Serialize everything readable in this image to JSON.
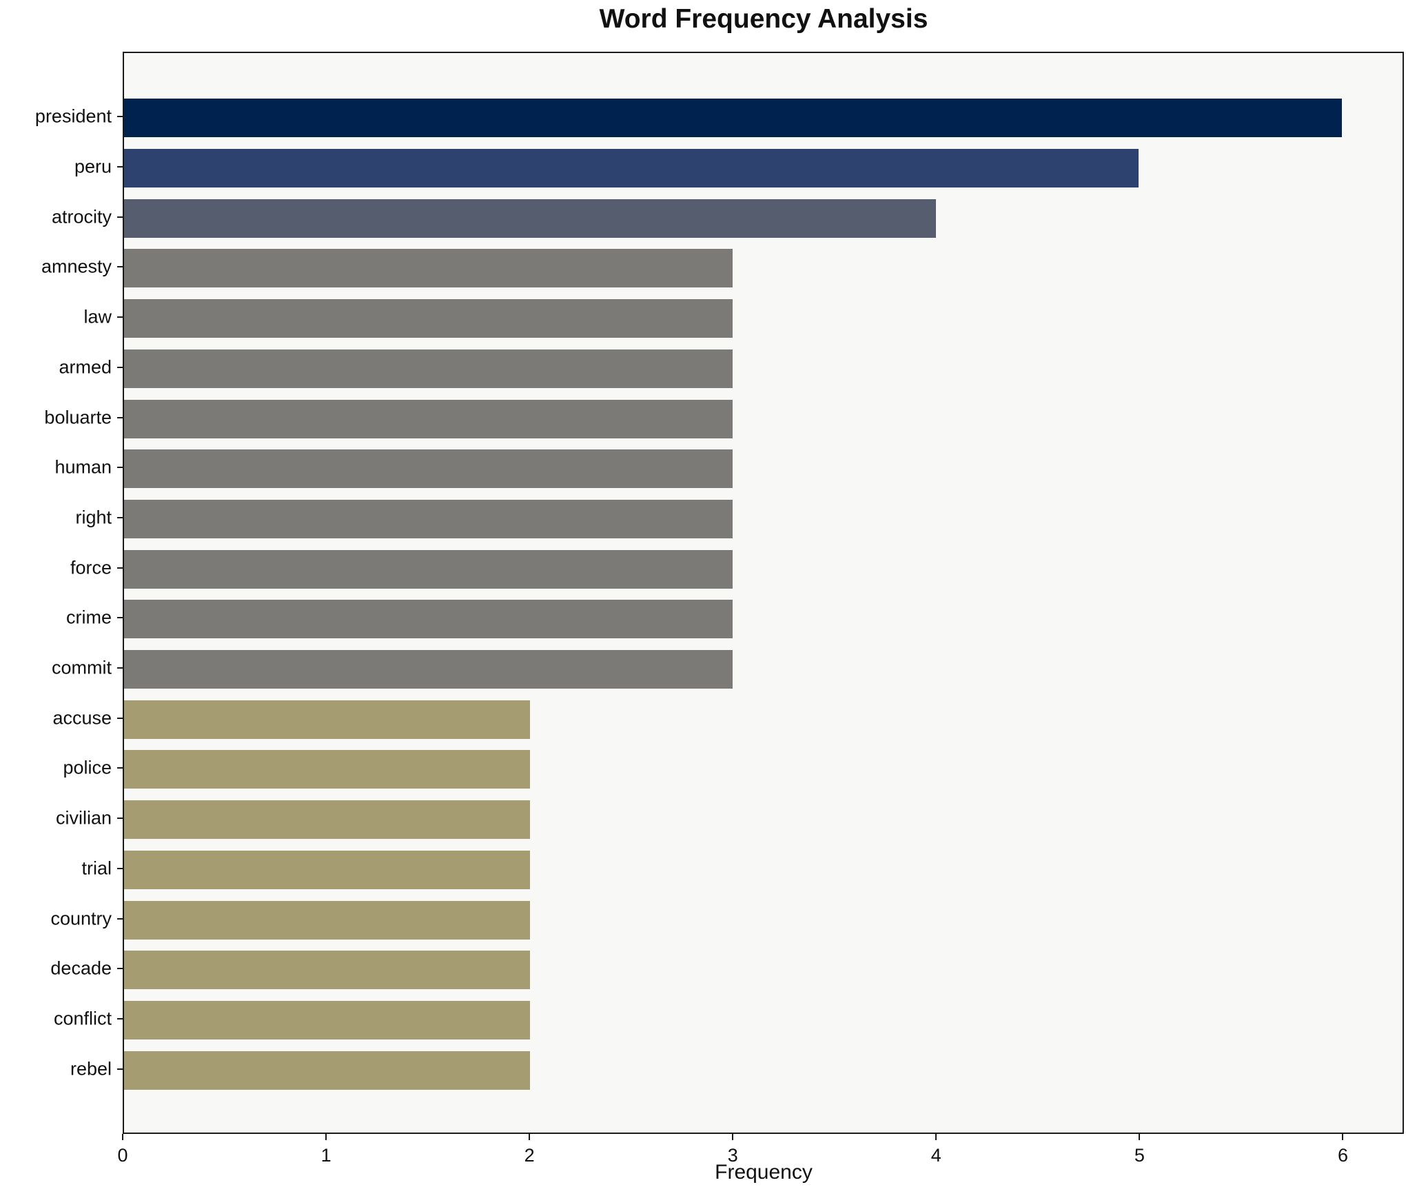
{
  "chart_data": {
    "type": "bar",
    "orientation": "horizontal",
    "title": "Word Frequency Analysis",
    "xlabel": "Frequency",
    "ylabel": "",
    "xlim": [
      0,
      6.3
    ],
    "xticks": [
      "0",
      "1",
      "2",
      "3",
      "4",
      "5",
      "6"
    ],
    "xtick_values": [
      0,
      1,
      2,
      3,
      4,
      5,
      6
    ],
    "grid": false,
    "legend": "none",
    "categories": [
      "president",
      "peru",
      "atrocity",
      "amnesty",
      "law",
      "armed",
      "boluarte",
      "human",
      "right",
      "force",
      "crime",
      "commit",
      "accuse",
      "police",
      "civilian",
      "trial",
      "country",
      "decade",
      "conflict",
      "rebel"
    ],
    "values": [
      6,
      5,
      4,
      3,
      3,
      3,
      3,
      3,
      3,
      3,
      3,
      3,
      2,
      2,
      2,
      2,
      2,
      2,
      2,
      2
    ],
    "bar_colors": [
      "#00224e",
      "#2e4270",
      "#565d6e",
      "#7b7a76",
      "#7b7a76",
      "#7b7a76",
      "#7b7a76",
      "#7b7a76",
      "#7b7a76",
      "#7b7a76",
      "#7b7a76",
      "#7b7a76",
      "#a59d71",
      "#a59d71",
      "#a59d71",
      "#a59d71",
      "#a59d71",
      "#a59d71",
      "#a59d71",
      "#a59d71"
    ],
    "colors": {
      "plot_background": "#f8f8f6",
      "figure_background": "#ffffff",
      "spine": "#1a1a1a",
      "text": "#111111"
    }
  }
}
